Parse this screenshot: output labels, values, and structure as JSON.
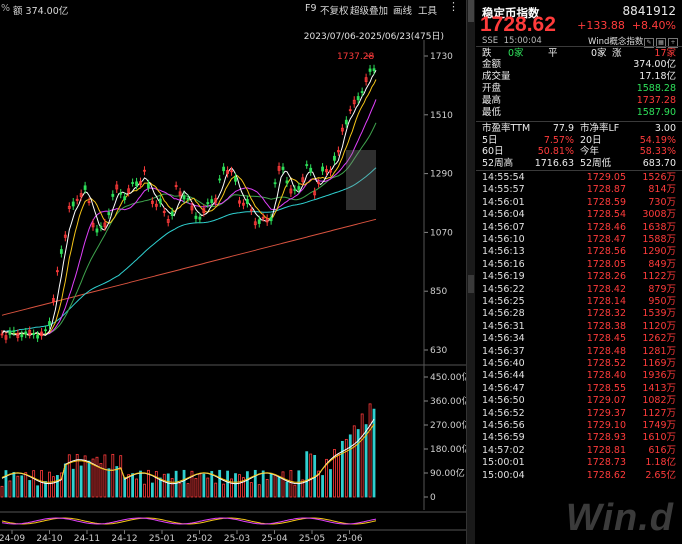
{
  "toolbar": {
    "left_pct": "%",
    "left_volume": "额 374.00亿",
    "items": [
      "F9",
      "不复权",
      "超级叠加",
      "画线",
      "工具"
    ],
    "menu_icon": "menu-dots-icon"
  },
  "date_range": "2023/07/06-2025/06/23(475日)",
  "max_label": "1737.28",
  "price_axis": [
    "1730",
    "1510",
    "1290",
    "1070",
    "850",
    "630"
  ],
  "volume_axis": [
    "450.00亿",
    "360.00亿",
    "270.00亿",
    "180.00亿",
    "90.00亿",
    "0"
  ],
  "x_axis": [
    "24-09",
    "24-10",
    "24-11",
    "24-12",
    "25-01",
    "25-02",
    "25-03",
    "25-04",
    "25-05",
    "25-06"
  ],
  "colors": {
    "up": "#ff3b3b",
    "down": "#2ee05a",
    "ma5": "#ffffff",
    "ma10": "#f5c518",
    "ma20": "#e040fb",
    "ma60": "#2fd0d0",
    "ma120": "#3fa34d",
    "ma250": "#d9533f"
  },
  "quote": {
    "name": "稳定币指数",
    "code": "8841912",
    "price": "1728.62",
    "change": "+133.88",
    "change_pct": "+8.40%",
    "exchange": "SSE",
    "time": "15:00:04",
    "wind_label": "Wind概念指数",
    "falling_label": "跌",
    "falling_count": "0家",
    "flat_label": "平",
    "flat_count": "0家",
    "rising_label": "涨",
    "rising_count": "17家"
  },
  "stats": [
    {
      "label": "金额",
      "value": "374.00亿",
      "color": "white"
    },
    {
      "label": "成交量",
      "value": "17.18亿",
      "color": "white"
    },
    {
      "label": "开盘",
      "value": "1588.28",
      "color": "green"
    },
    {
      "label": "最高",
      "value": "1737.28",
      "color": "red"
    },
    {
      "label": "最低",
      "value": "1587.90",
      "color": "green"
    }
  ],
  "ratios": [
    {
      "l1": "市盈率TTM",
      "v1": "77.9",
      "c1": "white",
      "l2": "市净率LF",
      "v2": "3.00",
      "c2": "white"
    },
    {
      "l1": "5日",
      "v1": "7.57%",
      "c1": "red",
      "l2": "20日",
      "v2": "54.19%",
      "c2": "red"
    },
    {
      "l1": "60日",
      "v1": "50.81%",
      "c1": "red",
      "l2": "今年",
      "v2": "58.33%",
      "c2": "red"
    },
    {
      "l1": "52周高",
      "v1": "1716.63",
      "c1": "white",
      "l2": "52周低",
      "v2": "683.70",
      "c2": "white"
    }
  ],
  "ticks": [
    {
      "time": "14:55:54",
      "price": "1729.05",
      "vol": "1526万"
    },
    {
      "time": "14:55:57",
      "price": "1728.87",
      "vol": "814万"
    },
    {
      "time": "14:56:01",
      "price": "1728.59",
      "vol": "730万"
    },
    {
      "time": "14:56:04",
      "price": "1728.54",
      "vol": "3008万"
    },
    {
      "time": "14:56:07",
      "price": "1728.46",
      "vol": "1638万"
    },
    {
      "time": "14:56:10",
      "price": "1728.47",
      "vol": "1588万"
    },
    {
      "time": "14:56:13",
      "price": "1728.56",
      "vol": "1290万"
    },
    {
      "time": "14:56:16",
      "price": "1728.05",
      "vol": "849万"
    },
    {
      "time": "14:56:19",
      "price": "1728.26",
      "vol": "1122万"
    },
    {
      "time": "14:56:22",
      "price": "1728.42",
      "vol": "879万"
    },
    {
      "time": "14:56:25",
      "price": "1728.14",
      "vol": "950万"
    },
    {
      "time": "14:56:28",
      "price": "1728.32",
      "vol": "1539万"
    },
    {
      "time": "14:56:31",
      "price": "1728.38",
      "vol": "1120万"
    },
    {
      "time": "14:56:34",
      "price": "1728.45",
      "vol": "1262万"
    },
    {
      "time": "14:56:37",
      "price": "1728.48",
      "vol": "1281万"
    },
    {
      "time": "14:56:40",
      "price": "1728.52",
      "vol": "1169万"
    },
    {
      "time": "14:56:44",
      "price": "1728.40",
      "vol": "1936万"
    },
    {
      "time": "14:56:47",
      "price": "1728.55",
      "vol": "1413万"
    },
    {
      "time": "14:56:50",
      "price": "1729.07",
      "vol": "1082万"
    },
    {
      "time": "14:56:52",
      "price": "1729.37",
      "vol": "1127万"
    },
    {
      "time": "14:56:56",
      "price": "1729.10",
      "vol": "1749万"
    },
    {
      "time": "14:56:59",
      "price": "1728.93",
      "vol": "1610万"
    },
    {
      "time": "14:57:02",
      "price": "1728.81",
      "vol": "616万"
    },
    {
      "time": "15:00:01",
      "price": "1728.73",
      "vol": "1.18亿"
    },
    {
      "time": "15:00:04",
      "price": "1728.62",
      "vol": "2.65亿"
    }
  ],
  "watermark": "Win.d"
}
